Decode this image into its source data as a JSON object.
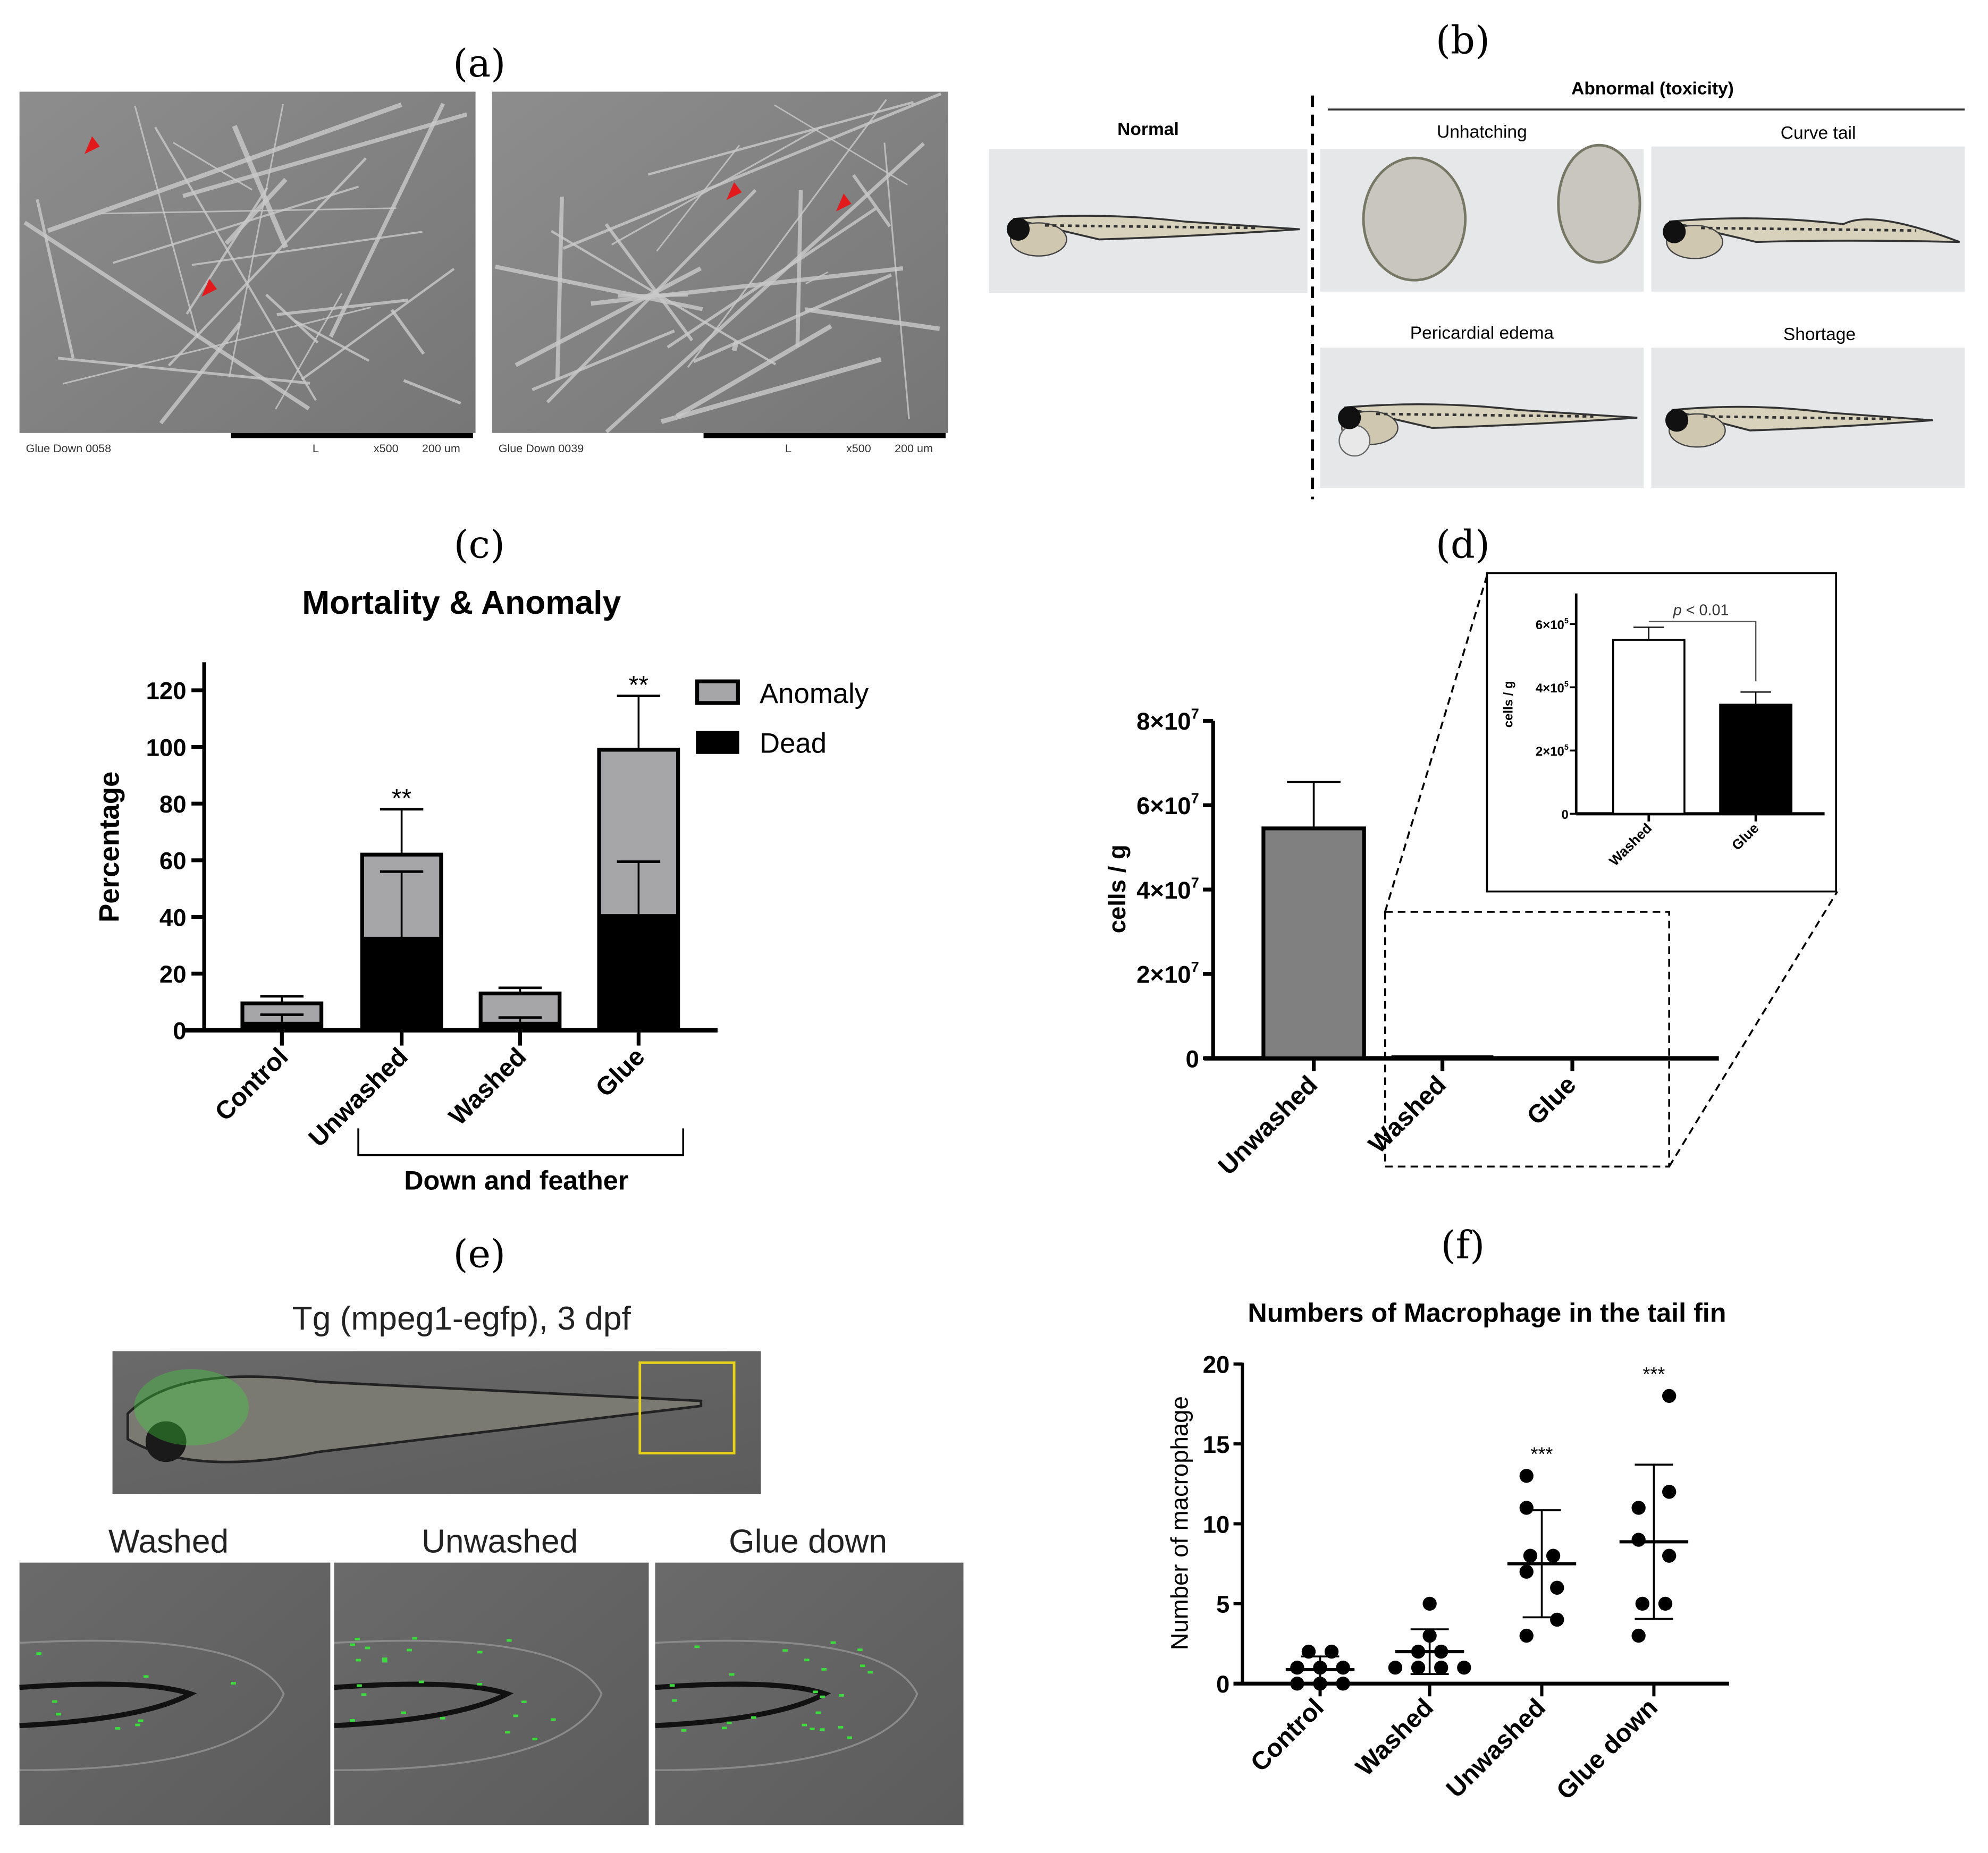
{
  "panels": {
    "a": {
      "label": "(a)",
      "images": [
        {
          "caption": "Glue Down 0058",
          "mode": "L",
          "magnification": "x500",
          "scale": "200 um"
        },
        {
          "caption": "Glue Down 0039",
          "mode": "L",
          "magnification": "x500",
          "scale": "200 um"
        }
      ],
      "marker_color": "#e31a1c"
    },
    "b": {
      "label": "(b)",
      "normal": "Normal",
      "abnormal": "Abnormal (toxicity)",
      "categories": [
        "Unhatching",
        "Curve tail",
        "Pericardial edema",
        "Shortage"
      ]
    },
    "c": {
      "label": "(c)"
    },
    "d": {
      "label": "(d)"
    },
    "e": {
      "label": "(e)",
      "title": "Tg (mpeg1-egfp), 3 dpf",
      "conditions": [
        "Washed",
        "Unwashed",
        "Glue down"
      ],
      "highlight_color": "#e6d21a",
      "fluor_color": "#3ddc3d"
    },
    "f": {
      "label": "(f)"
    }
  },
  "chart_data": [
    {
      "type": "bar",
      "stacked": true,
      "title": "Mortality & Anomaly",
      "ylabel": "Percentage",
      "xlabel": "",
      "group_label": "Down and feather",
      "group_members": [
        "Unwashed",
        "Washed",
        "Glue"
      ],
      "categories": [
        "Control",
        "Unwashed",
        "Washed",
        "Glue"
      ],
      "ylim": [
        0,
        130
      ],
      "yticks": [
        0,
        20,
        40,
        60,
        80,
        100,
        120
      ],
      "series": [
        {
          "name": "Dead",
          "color": "#000000",
          "values": [
            3,
            33,
            3,
            41
          ],
          "error_upper": [
            5.5,
            56,
            4.5,
            59.5
          ]
        },
        {
          "name": "Anomaly",
          "color": "#a6a6a8",
          "values": [
            6.5,
            29,
            10,
            58
          ],
          "error_upper": [
            12,
            78,
            15,
            118
          ]
        }
      ],
      "significance": [
        "",
        "**",
        "",
        "**"
      ],
      "legend": "top-right"
    },
    {
      "type": "bar",
      "title": "",
      "ylabel": "cells / g",
      "categories": [
        "Unwashed",
        "Washed",
        "Glue"
      ],
      "values": [
        54500000,
        550000,
        345000
      ],
      "error_upper": [
        65500000,
        590000,
        385000
      ],
      "ylim": [
        0,
        80000000
      ],
      "yticks": [
        {
          "value": 0,
          "base": "0",
          "exp": ""
        },
        {
          "value": 20000000,
          "base": "2×10",
          "exp": "7"
        },
        {
          "value": 40000000,
          "base": "4×10",
          "exp": "7"
        },
        {
          "value": 60000000,
          "base": "6×10",
          "exp": "7"
        },
        {
          "value": 80000000,
          "base": "8×10",
          "exp": "7"
        }
      ],
      "bar_color": "#808080",
      "inset": {
        "ylabel": "cells / g",
        "categories": [
          "Washed",
          "Glue"
        ],
        "values": [
          550000,
          345000
        ],
        "error_upper": [
          590000,
          385000
        ],
        "colors": [
          "#ffffff",
          "#000000"
        ],
        "ylim": [
          0,
          700000
        ],
        "yticks": [
          {
            "value": 0,
            "base": "0",
            "exp": ""
          },
          {
            "value": 200000,
            "base": "2×10",
            "exp": "5"
          },
          {
            "value": 400000,
            "base": "4×10",
            "exp": "5"
          },
          {
            "value": 600000,
            "base": "6×10",
            "exp": "5"
          }
        ],
        "annotation": {
          "italic": "p",
          "text": " < 0.01"
        }
      }
    },
    {
      "type": "scatter",
      "title": "Numbers of Macrophage in the tail fin",
      "ylabel": "Number of macrophage",
      "categories": [
        "Control",
        "Washed",
        "Unwashed",
        "Glue down"
      ],
      "ylim": [
        0,
        20
      ],
      "yticks": [
        0,
        5,
        10,
        15,
        20
      ],
      "points": [
        [
          2,
          2,
          1,
          1,
          1,
          0,
          0,
          0
        ],
        [
          5,
          3,
          2,
          2,
          1,
          1,
          1,
          1
        ],
        [
          13,
          11,
          8,
          8,
          7,
          6,
          4,
          3
        ],
        [
          18,
          12,
          11,
          9,
          8,
          5,
          5,
          3
        ]
      ],
      "mean": [
        0.875,
        2.0,
        7.5,
        8.875
      ],
      "sd_low": [
        0.05,
        0.6,
        4.15,
        4.05
      ],
      "sd_high": [
        1.7,
        3.4,
        10.85,
        13.7
      ],
      "significance": [
        "",
        "",
        "***",
        "***"
      ]
    }
  ]
}
